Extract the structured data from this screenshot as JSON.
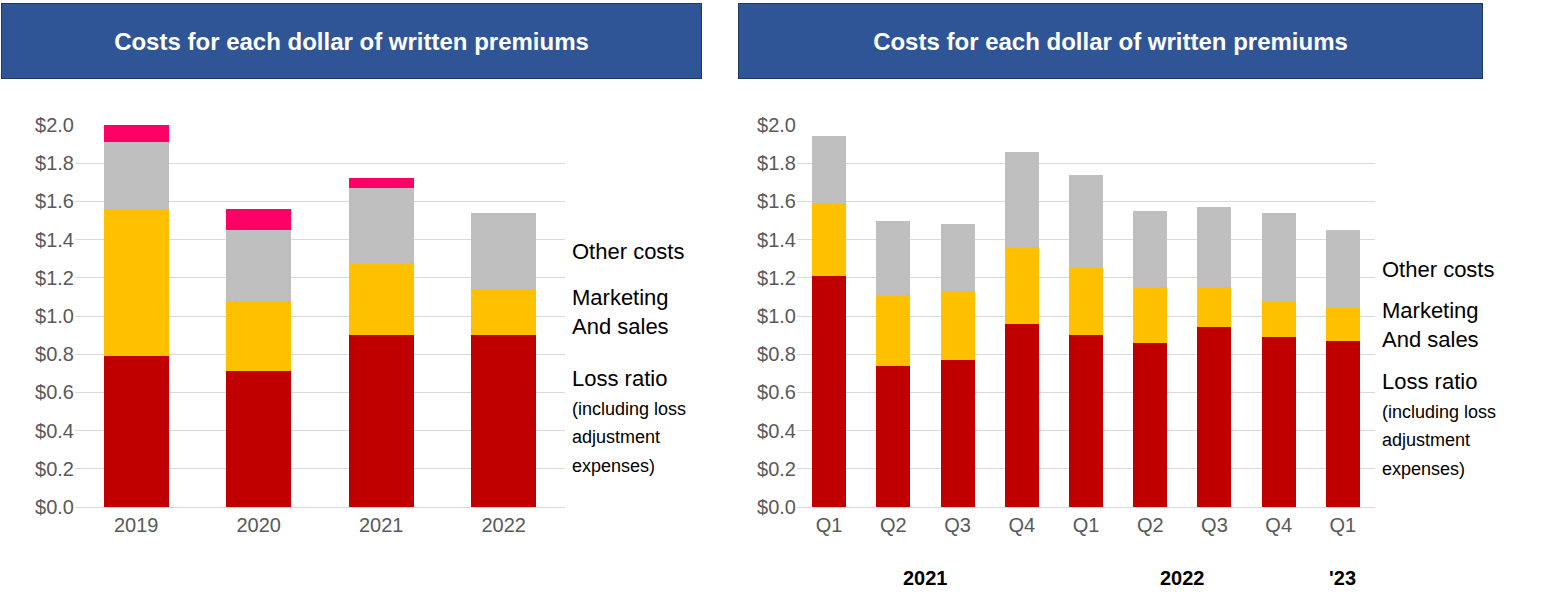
{
  "chart_data": [
    {
      "type": "bar",
      "stacked": true,
      "grid": true,
      "title": "Costs for each dollar of written premiums",
      "categories": [
        "2019",
        "2020",
        "2021",
        "2022"
      ],
      "series": [
        {
          "name": "Loss ratio (including loss adjustment expenses)",
          "color": "#C00000",
          "values": [
            0.79,
            0.71,
            0.9,
            0.9
          ]
        },
        {
          "name": "Marketing And sales",
          "color": "#FFC000",
          "values": [
            0.77,
            0.37,
            0.38,
            0.24
          ]
        },
        {
          "name": "Other costs",
          "color": "#BFBFBF",
          "values": [
            0.35,
            0.37,
            0.39,
            0.4
          ]
        },
        {
          "color": "#FF0066",
          "values": [
            0.09,
            0.11,
            0.05,
            null
          ]
        }
      ],
      "ylim": [
        0,
        2.0
      ],
      "yticks": [
        {
          "value": 0,
          "label": "$0.0"
        },
        {
          "value": 0.2,
          "label": "$0.2"
        },
        {
          "value": 0.4,
          "label": "$0.4"
        },
        {
          "value": 0.6,
          "label": "$0.6"
        },
        {
          "value": 0.8,
          "label": "$0.8"
        },
        {
          "value": 1.0,
          "label": "$1.0"
        },
        {
          "value": 1.2,
          "label": "$1.2"
        },
        {
          "value": 1.4,
          "label": "$1.4"
        },
        {
          "value": 1.6,
          "label": "$1.6"
        },
        {
          "value": 1.8,
          "label": "$1.8"
        },
        {
          "value": 2.0,
          "label": "$2.0"
        }
      ]
    },
    {
      "type": "bar",
      "stacked": true,
      "grid": true,
      "title": "Costs for each dollar of written premiums",
      "categories": [
        "Q1",
        "Q2",
        "Q3",
        "Q4",
        "Q1",
        "Q2",
        "Q3",
        "Q4",
        "Q1"
      ],
      "groups": [
        "2021",
        "2021",
        "2021",
        "2021",
        "2022",
        "2022",
        "2022",
        "2022",
        "'23"
      ],
      "series": [
        {
          "name": "Loss ratio (including loss adjustment expenses)",
          "color": "#C00000",
          "values": [
            1.21,
            0.74,
            0.77,
            0.96,
            0.9,
            0.86,
            0.94,
            0.89,
            0.87
          ]
        },
        {
          "name": "Marketing And sales",
          "color": "#FFC000",
          "values": [
            0.38,
            0.37,
            0.36,
            0.4,
            0.35,
            0.29,
            0.21,
            0.19,
            0.17
          ]
        },
        {
          "name": "Other costs",
          "color": "#BFBFBF",
          "values": [
            0.35,
            0.39,
            0.35,
            0.5,
            0.49,
            0.4,
            0.42,
            0.46,
            0.41
          ]
        }
      ],
      "ylim": [
        0,
        2.0
      ],
      "yticks": [
        {
          "value": 0,
          "label": "$0.0"
        },
        {
          "value": 0.2,
          "label": "$0.2"
        },
        {
          "value": 0.4,
          "label": "$0.4"
        },
        {
          "value": 0.6,
          "label": "$0.6"
        },
        {
          "value": 0.8,
          "label": "$0.8"
        },
        {
          "value": 1.0,
          "label": "$1.0"
        },
        {
          "value": 1.2,
          "label": "$1.2"
        },
        {
          "value": 1.4,
          "label": "$1.4"
        },
        {
          "value": 1.6,
          "label": "$1.6"
        },
        {
          "value": 1.8,
          "label": "$1.8"
        },
        {
          "value": 2.0,
          "label": "$2.0"
        }
      ]
    }
  ]
}
